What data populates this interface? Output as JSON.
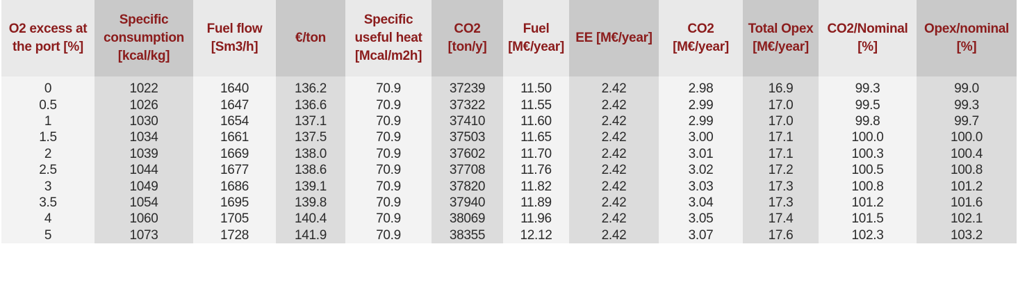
{
  "table": {
    "headers": [
      {
        "line1": "O2 excess at",
        "line2": "the port [%]",
        "line3": ""
      },
      {
        "line1": "Specific",
        "line2": "consumption",
        "line3": "[kcal/kg]"
      },
      {
        "line1": "Fuel flow",
        "line2": "[Sm3/h]",
        "line3": ""
      },
      {
        "line1": "€/ton",
        "line2": "",
        "line3": ""
      },
      {
        "line1": "Specific",
        "line2": "useful heat",
        "line3": "[Mcal/m2h]"
      },
      {
        "line1": "CO2",
        "line2": "[ton/y]",
        "line3": ""
      },
      {
        "line1": "Fuel",
        "line2": "[M€/year]",
        "line3": ""
      },
      {
        "line1": "EE [M€/year]",
        "line2": "",
        "line3": ""
      },
      {
        "line1": "CO2",
        "line2": "[M€/year]",
        "line3": ""
      },
      {
        "line1": "Total Opex",
        "line2": "[M€/year]",
        "line3": ""
      },
      {
        "line1": "CO2/Nominal",
        "line2": "[%]",
        "line3": ""
      },
      {
        "line1": "Opex/nominal",
        "line2": "[%]",
        "line3": ""
      }
    ],
    "rows": [
      [
        "0",
        "1022",
        "1640",
        "136.2",
        "70.9",
        "37239",
        "11.50",
        "2.42",
        "2.98",
        "16.9",
        "99.3",
        "99.0"
      ],
      [
        "0.5",
        "1026",
        "1647",
        "136.6",
        "70.9",
        "37322",
        "11.55",
        "2.42",
        "2.99",
        "17.0",
        "99.5",
        "99.3"
      ],
      [
        "1",
        "1030",
        "1654",
        "137.1",
        "70.9",
        "37410",
        "11.60",
        "2.42",
        "2.99",
        "17.0",
        "99.8",
        "99.7"
      ],
      [
        "1.5",
        "1034",
        "1661",
        "137.5",
        "70.9",
        "37503",
        "11.65",
        "2.42",
        "3.00",
        "17.1",
        "100.0",
        "100.0"
      ],
      [
        "2",
        "1039",
        "1669",
        "138.0",
        "70.9",
        "37602",
        "11.70",
        "2.42",
        "3.01",
        "17.1",
        "100.3",
        "100.4"
      ],
      [
        "2.5",
        "1044",
        "1677",
        "138.6",
        "70.9",
        "37708",
        "11.76",
        "2.42",
        "3.02",
        "17.2",
        "100.5",
        "100.8"
      ],
      [
        "3",
        "1049",
        "1686",
        "139.1",
        "70.9",
        "37820",
        "11.82",
        "2.42",
        "3.03",
        "17.3",
        "100.8",
        "101.2"
      ],
      [
        "3.5",
        "1054",
        "1695",
        "139.8",
        "70.9",
        "37940",
        "11.89",
        "2.42",
        "3.04",
        "17.3",
        "101.2",
        "101.6"
      ],
      [
        "4",
        "1060",
        "1705",
        "140.4",
        "70.9",
        "38069",
        "11.96",
        "2.42",
        "3.05",
        "17.4",
        "101.5",
        "102.1"
      ],
      [
        "5",
        "1073",
        "1728",
        "141.9",
        "70.9",
        "38355",
        "12.12",
        "2.42",
        "3.07",
        "17.6",
        "102.3",
        "103.2"
      ]
    ]
  },
  "colors": {
    "header_text": "#8b1c1c",
    "header_light": "#e9e9e9",
    "header_dark": "#c9c9c9",
    "body_light": "#f3f3f3",
    "body_dark": "#dcdcdc"
  }
}
